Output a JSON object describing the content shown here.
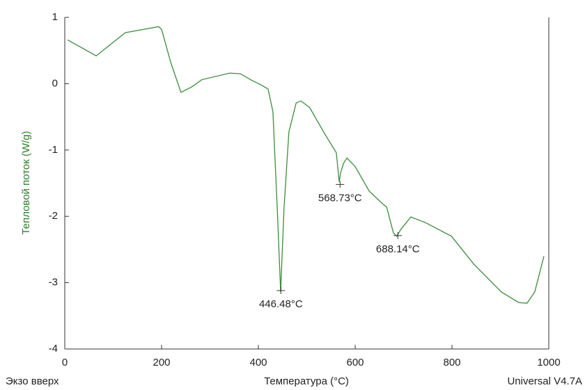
{
  "chart_data": {
    "type": "line",
    "y_label": "Тепловой поток (W/g)",
    "x_label": "Температура (°C)",
    "corner_left": "Экзо вверх",
    "corner_right": "Universal V4.7A",
    "series": [
      {
        "color": "#3c8c3c",
        "x": [
          6,
          65,
          125,
          194,
          200,
          219,
          240,
          262,
          283,
          341,
          363,
          384,
          406,
          420,
          430,
          439,
          446,
          453,
          463,
          478,
          488,
          506,
          535,
          561,
          567,
          570,
          576,
          583,
          600,
          629,
          655,
          665,
          679,
          686,
          694,
          715,
          744,
          799,
          845,
          902,
          938,
          955,
          971,
          990
        ],
        "values": [
          0.66,
          0.42,
          0.77,
          0.86,
          0.82,
          0.32,
          -0.13,
          -0.05,
          0.06,
          0.16,
          0.15,
          0.06,
          -0.02,
          -0.08,
          -0.42,
          -1.88,
          -3.14,
          -1.88,
          -0.73,
          -0.29,
          -0.26,
          -0.36,
          -0.73,
          -1.04,
          -1.48,
          -1.34,
          -1.2,
          -1.12,
          -1.25,
          -1.62,
          -1.8,
          -1.86,
          -2.25,
          -2.3,
          -2.2,
          -2.01,
          -2.09,
          -2.3,
          -2.72,
          -3.14,
          -3.3,
          -3.31,
          -3.14,
          -2.6
        ]
      }
    ],
    "annotations": [
      {
        "x": 446.48,
        "y": -3.12,
        "label": "446.48°C"
      },
      {
        "x": 568.73,
        "y": -1.52,
        "label": "568.73°C"
      },
      {
        "x": 688.14,
        "y": -2.29,
        "label": "688.14°C"
      }
    ],
    "xlim": [
      0,
      1000
    ],
    "xticks": [
      0,
      200,
      400,
      600,
      800,
      1000
    ],
    "ylim": [
      -4,
      1
    ],
    "yticks": [
      -4,
      -3,
      -2,
      -1,
      0,
      1
    ],
    "label_color": "#2e7d2e"
  }
}
